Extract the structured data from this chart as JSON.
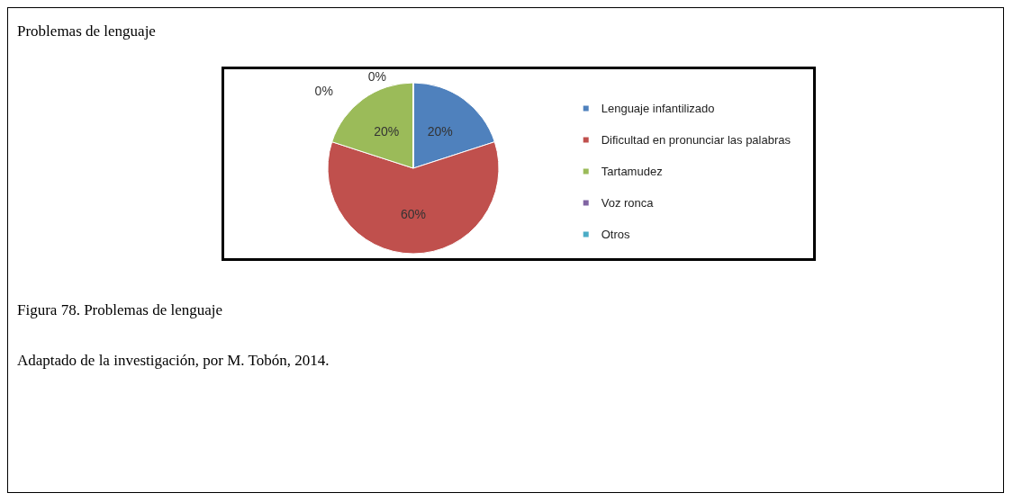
{
  "chart_data": {
    "type": "pie",
    "title": "Problemas de lenguaje",
    "categories": [
      "Lenguaje infantilizado",
      "Dificultad en pronunciar las palabras",
      "Tartamudez",
      "Voz ronca",
      "Otros"
    ],
    "values": [
      20,
      60,
      20,
      0,
      0
    ],
    "value_labels": [
      "20%",
      "60%",
      "20%",
      "0%",
      "0%"
    ],
    "colors": [
      "#4f81bd",
      "#c0504d",
      "#9bbb59",
      "#8064a2",
      "#4bacc6"
    ],
    "legend": "right",
    "annotations": [
      "Figura 78. Problemas de lenguaje",
      "Adaptado de la investigación, por M. Tobón, 2014."
    ]
  }
}
